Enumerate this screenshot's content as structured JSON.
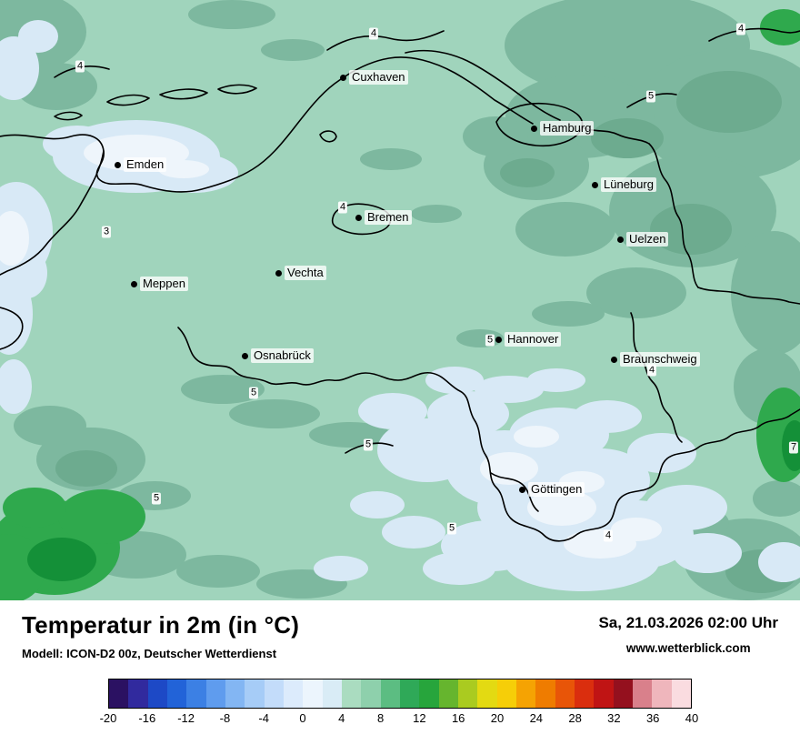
{
  "map": {
    "cities": [
      {
        "label": "Cuxhaven"
      },
      {
        "label": "Hamburg"
      },
      {
        "label": "Emden"
      },
      {
        "label": "Lüneburg"
      },
      {
        "label": "Bremen"
      },
      {
        "label": "Uelzen"
      },
      {
        "label": "Meppen"
      },
      {
        "label": "Vechta"
      },
      {
        "label": "Hannover"
      },
      {
        "label": "Osnabrück"
      },
      {
        "label": "Braunschweig"
      },
      {
        "label": "Göttingen"
      }
    ],
    "contour_labels": [
      {
        "value": "4"
      },
      {
        "value": "4"
      },
      {
        "value": "4"
      },
      {
        "value": "5"
      },
      {
        "value": "4"
      },
      {
        "value": "3"
      },
      {
        "value": "5"
      },
      {
        "value": "4"
      },
      {
        "value": "5"
      },
      {
        "value": "5"
      },
      {
        "value": "5"
      },
      {
        "value": "7"
      },
      {
        "value": "5"
      },
      {
        "value": "4"
      }
    ],
    "palette": {
      "base": "#a0d4bc",
      "dark": "#7db89f",
      "darker": "#6dab8f",
      "cold": "#d8e9f6",
      "pale": "#eef5fb",
      "warm": "#2fa94d",
      "warm_deep": "#149038",
      "border": "#000000"
    }
  },
  "footer": {
    "title": "Temperatur in 2m (in °C)",
    "model": "Modell: ICON-D2 00z, Deutscher Wetterdienst",
    "datetime": "Sa, 21.03.2026 02:00 Uhr",
    "website": "www.wetterblick.com"
  },
  "legend": {
    "ticks": [
      "-20",
      "-16",
      "-12",
      "-8",
      "-4",
      "0",
      "4",
      "8",
      "12",
      "16",
      "20",
      "24",
      "28",
      "32",
      "36",
      "40"
    ],
    "colors": [
      "#2b1162",
      "#312a9e",
      "#1d49c6",
      "#2263d8",
      "#3c80e4",
      "#5f9cee",
      "#83b6f3",
      "#a6ccf7",
      "#c3dcfa",
      "#dcebfc",
      "#ecf5fd",
      "#d9ecf6",
      "#aadcc0",
      "#8ed0ac",
      "#5cbd82",
      "#2fa958",
      "#27a53c",
      "#66b52e",
      "#aacb20",
      "#e3da12",
      "#f6ce08",
      "#f5a303",
      "#ef7c00",
      "#e85508",
      "#da2e0e",
      "#c01414",
      "#94101e",
      "#d9808b",
      "#efb6bc",
      "#fadce0"
    ]
  }
}
